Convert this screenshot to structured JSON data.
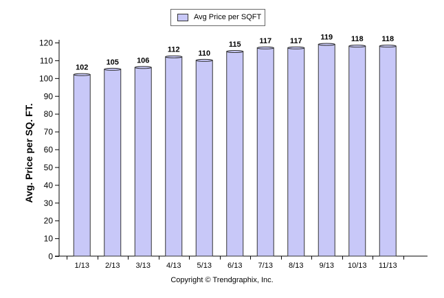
{
  "chart_data": {
    "type": "bar",
    "categories": [
      "1/13",
      "2/13",
      "3/13",
      "4/13",
      "5/13",
      "6/13",
      "7/13",
      "8/13",
      "9/13",
      "10/13",
      "11/13"
    ],
    "series": [
      {
        "name": "Avg Price per SQFT",
        "values": [
          102,
          105,
          106,
          112,
          110,
          115,
          117,
          117,
          119,
          118,
          118
        ]
      }
    ],
    "data_labels": [
      "102",
      "105",
      "106",
      "112",
      "110",
      "115",
      "117",
      "117",
      "119",
      "118",
      "118"
    ],
    "ylabel": "Avg. Price per SQ. FT.",
    "xlabel": "",
    "ylim": [
      0,
      120
    ],
    "yticks": [
      0,
      10,
      20,
      30,
      40,
      50,
      60,
      70,
      80,
      90,
      100,
      110,
      120
    ],
    "yticklabels": [
      "0",
      "10",
      "20",
      "30",
      "40",
      "50",
      "60",
      "70",
      "80",
      "90",
      "100",
      "110",
      "120"
    ],
    "grid": false,
    "legend_position": "top-center",
    "bar_color": "#c8c8f8",
    "bar_stroke": "#333333"
  },
  "legend": {
    "label": "Avg Price per SQFT"
  },
  "footer": {
    "copyright": "Copyright © Trendgraphix, Inc."
  }
}
